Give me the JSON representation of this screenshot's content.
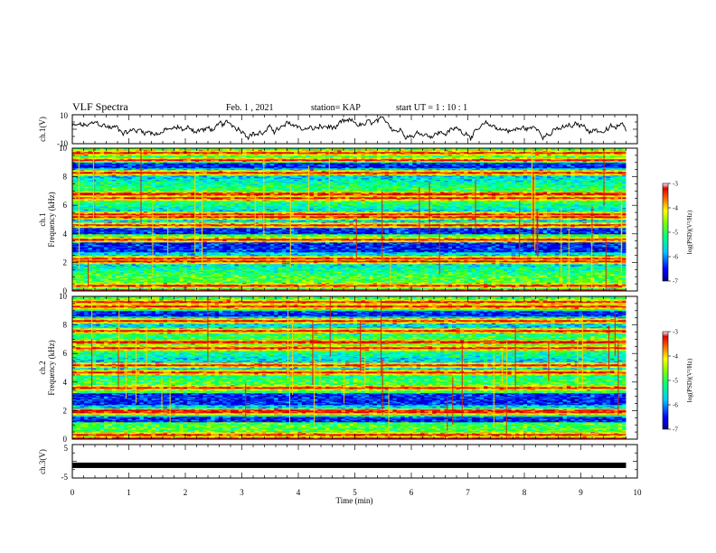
{
  "header": {
    "title": "VLF Spectra",
    "date": "Feb. 1 , 2021",
    "station": "station= KAP",
    "start": "start UT =  1 : 10 : 1"
  },
  "chart_data": [
    {
      "type": "line",
      "name": "ch1-waveform",
      "ylabel": "ch.1(V)",
      "ylim": [
        -10,
        10
      ],
      "yticks": [
        "10",
        "-10"
      ],
      "x_range_min": [
        0,
        9.8
      ],
      "color": "#000000"
    },
    {
      "type": "heatmap",
      "name": "ch1-spectrogram",
      "ylabel": "ch.1\nFrequency (kHz)",
      "ylim": [
        0,
        10
      ],
      "yticks": [
        "0",
        "2",
        "4",
        "6",
        "8",
        "10"
      ],
      "colorbar": {
        "label": "log(PSD)(V²/Hz)",
        "range": [
          -7,
          -3
        ],
        "ticks": [
          "-3",
          "-4",
          "-5",
          "-6",
          "-7"
        ]
      },
      "strong_lines_khz": [
        0.4,
        2.1,
        2.3,
        3.6,
        4.6,
        5.2,
        5.4,
        6.5,
        6.8,
        8.3,
        9.2,
        9.7
      ],
      "quiet_bands_khz": [
        [
          2.7,
          3.4
        ],
        [
          4.0,
          4.6
        ],
        [
          8.6,
          9.0
        ]
      ]
    },
    {
      "type": "heatmap",
      "name": "ch2-spectrogram",
      "ylabel": "ch.2\nFrequency (kHz)",
      "ylim": [
        0,
        10
      ],
      "yticks": [
        "0",
        "2",
        "4",
        "6",
        "8",
        "10"
      ],
      "colorbar": {
        "label": "log(PSD)(V²/Hz)",
        "range": [
          -7,
          -3
        ],
        "ticks": [
          "-3",
          "-4",
          "-5",
          "-6",
          "-7"
        ]
      },
      "strong_lines_khz": [
        0.3,
        1.9,
        2.0,
        3.6,
        4.7,
        5.2,
        6.4,
        6.8,
        7.6,
        8.3,
        9.3,
        9.6
      ],
      "quiet_bands_khz": [
        [
          2.4,
          3.2
        ],
        [
          1.2,
          1.6
        ],
        [
          8.6,
          9.0
        ]
      ]
    },
    {
      "type": "line",
      "name": "ch3-waveform",
      "ylabel": "ch.3(V)",
      "ylim": [
        -5,
        5
      ],
      "yticks": [
        "5",
        "-5"
      ],
      "xlabel": "Time (min)",
      "xlim": [
        0,
        10
      ],
      "xticks": [
        "0",
        "1",
        "2",
        "3",
        "4",
        "5",
        "6",
        "7",
        "8",
        "9",
        "10"
      ],
      "x_range_min": [
        0,
        9.8
      ],
      "level_v": -1.2,
      "color": "#000000"
    }
  ]
}
